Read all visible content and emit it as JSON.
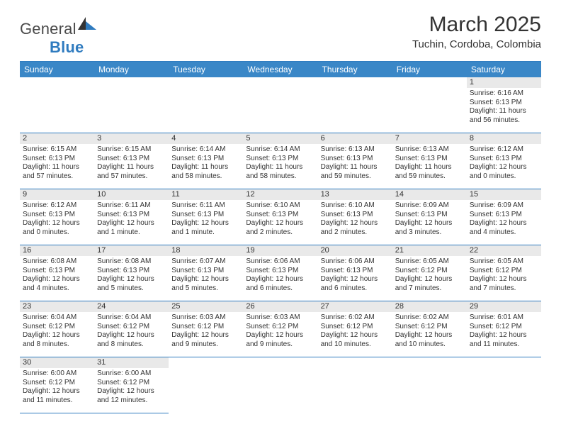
{
  "logo": {
    "general": "General",
    "blue": "Blue"
  },
  "title": "March 2025",
  "subtitle": "Tuchin, Cordoba, Colombia",
  "colors": {
    "header_bg": "#3a87c7",
    "border": "#2f7bbf",
    "daynum_bg": "#e9e9e9",
    "text": "#333333"
  },
  "weekdays": [
    "Sunday",
    "Monday",
    "Tuesday",
    "Wednesday",
    "Thursday",
    "Friday",
    "Saturday"
  ],
  "weeks": [
    [
      null,
      null,
      null,
      null,
      null,
      null,
      {
        "n": "1",
        "sr": "Sunrise: 6:16 AM",
        "ss": "Sunset: 6:13 PM",
        "dl": "Daylight: 11 hours and 56 minutes."
      }
    ],
    [
      {
        "n": "2",
        "sr": "Sunrise: 6:15 AM",
        "ss": "Sunset: 6:13 PM",
        "dl": "Daylight: 11 hours and 57 minutes."
      },
      {
        "n": "3",
        "sr": "Sunrise: 6:15 AM",
        "ss": "Sunset: 6:13 PM",
        "dl": "Daylight: 11 hours and 57 minutes."
      },
      {
        "n": "4",
        "sr": "Sunrise: 6:14 AM",
        "ss": "Sunset: 6:13 PM",
        "dl": "Daylight: 11 hours and 58 minutes."
      },
      {
        "n": "5",
        "sr": "Sunrise: 6:14 AM",
        "ss": "Sunset: 6:13 PM",
        "dl": "Daylight: 11 hours and 58 minutes."
      },
      {
        "n": "6",
        "sr": "Sunrise: 6:13 AM",
        "ss": "Sunset: 6:13 PM",
        "dl": "Daylight: 11 hours and 59 minutes."
      },
      {
        "n": "7",
        "sr": "Sunrise: 6:13 AM",
        "ss": "Sunset: 6:13 PM",
        "dl": "Daylight: 11 hours and 59 minutes."
      },
      {
        "n": "8",
        "sr": "Sunrise: 6:12 AM",
        "ss": "Sunset: 6:13 PM",
        "dl": "Daylight: 12 hours and 0 minutes."
      }
    ],
    [
      {
        "n": "9",
        "sr": "Sunrise: 6:12 AM",
        "ss": "Sunset: 6:13 PM",
        "dl": "Daylight: 12 hours and 0 minutes."
      },
      {
        "n": "10",
        "sr": "Sunrise: 6:11 AM",
        "ss": "Sunset: 6:13 PM",
        "dl": "Daylight: 12 hours and 1 minute."
      },
      {
        "n": "11",
        "sr": "Sunrise: 6:11 AM",
        "ss": "Sunset: 6:13 PM",
        "dl": "Daylight: 12 hours and 1 minute."
      },
      {
        "n": "12",
        "sr": "Sunrise: 6:10 AM",
        "ss": "Sunset: 6:13 PM",
        "dl": "Daylight: 12 hours and 2 minutes."
      },
      {
        "n": "13",
        "sr": "Sunrise: 6:10 AM",
        "ss": "Sunset: 6:13 PM",
        "dl": "Daylight: 12 hours and 2 minutes."
      },
      {
        "n": "14",
        "sr": "Sunrise: 6:09 AM",
        "ss": "Sunset: 6:13 PM",
        "dl": "Daylight: 12 hours and 3 minutes."
      },
      {
        "n": "15",
        "sr": "Sunrise: 6:09 AM",
        "ss": "Sunset: 6:13 PM",
        "dl": "Daylight: 12 hours and 4 minutes."
      }
    ],
    [
      {
        "n": "16",
        "sr": "Sunrise: 6:08 AM",
        "ss": "Sunset: 6:13 PM",
        "dl": "Daylight: 12 hours and 4 minutes."
      },
      {
        "n": "17",
        "sr": "Sunrise: 6:08 AM",
        "ss": "Sunset: 6:13 PM",
        "dl": "Daylight: 12 hours and 5 minutes."
      },
      {
        "n": "18",
        "sr": "Sunrise: 6:07 AM",
        "ss": "Sunset: 6:13 PM",
        "dl": "Daylight: 12 hours and 5 minutes."
      },
      {
        "n": "19",
        "sr": "Sunrise: 6:06 AM",
        "ss": "Sunset: 6:13 PM",
        "dl": "Daylight: 12 hours and 6 minutes."
      },
      {
        "n": "20",
        "sr": "Sunrise: 6:06 AM",
        "ss": "Sunset: 6:13 PM",
        "dl": "Daylight: 12 hours and 6 minutes."
      },
      {
        "n": "21",
        "sr": "Sunrise: 6:05 AM",
        "ss": "Sunset: 6:12 PM",
        "dl": "Daylight: 12 hours and 7 minutes."
      },
      {
        "n": "22",
        "sr": "Sunrise: 6:05 AM",
        "ss": "Sunset: 6:12 PM",
        "dl": "Daylight: 12 hours and 7 minutes."
      }
    ],
    [
      {
        "n": "23",
        "sr": "Sunrise: 6:04 AM",
        "ss": "Sunset: 6:12 PM",
        "dl": "Daylight: 12 hours and 8 minutes."
      },
      {
        "n": "24",
        "sr": "Sunrise: 6:04 AM",
        "ss": "Sunset: 6:12 PM",
        "dl": "Daylight: 12 hours and 8 minutes."
      },
      {
        "n": "25",
        "sr": "Sunrise: 6:03 AM",
        "ss": "Sunset: 6:12 PM",
        "dl": "Daylight: 12 hours and 9 minutes."
      },
      {
        "n": "26",
        "sr": "Sunrise: 6:03 AM",
        "ss": "Sunset: 6:12 PM",
        "dl": "Daylight: 12 hours and 9 minutes."
      },
      {
        "n": "27",
        "sr": "Sunrise: 6:02 AM",
        "ss": "Sunset: 6:12 PM",
        "dl": "Daylight: 12 hours and 10 minutes."
      },
      {
        "n": "28",
        "sr": "Sunrise: 6:02 AM",
        "ss": "Sunset: 6:12 PM",
        "dl": "Daylight: 12 hours and 10 minutes."
      },
      {
        "n": "29",
        "sr": "Sunrise: 6:01 AM",
        "ss": "Sunset: 6:12 PM",
        "dl": "Daylight: 12 hours and 11 minutes."
      }
    ],
    [
      {
        "n": "30",
        "sr": "Sunrise: 6:00 AM",
        "ss": "Sunset: 6:12 PM",
        "dl": "Daylight: 12 hours and 11 minutes."
      },
      {
        "n": "31",
        "sr": "Sunrise: 6:00 AM",
        "ss": "Sunset: 6:12 PM",
        "dl": "Daylight: 12 hours and 12 minutes."
      },
      null,
      null,
      null,
      null,
      null
    ]
  ]
}
